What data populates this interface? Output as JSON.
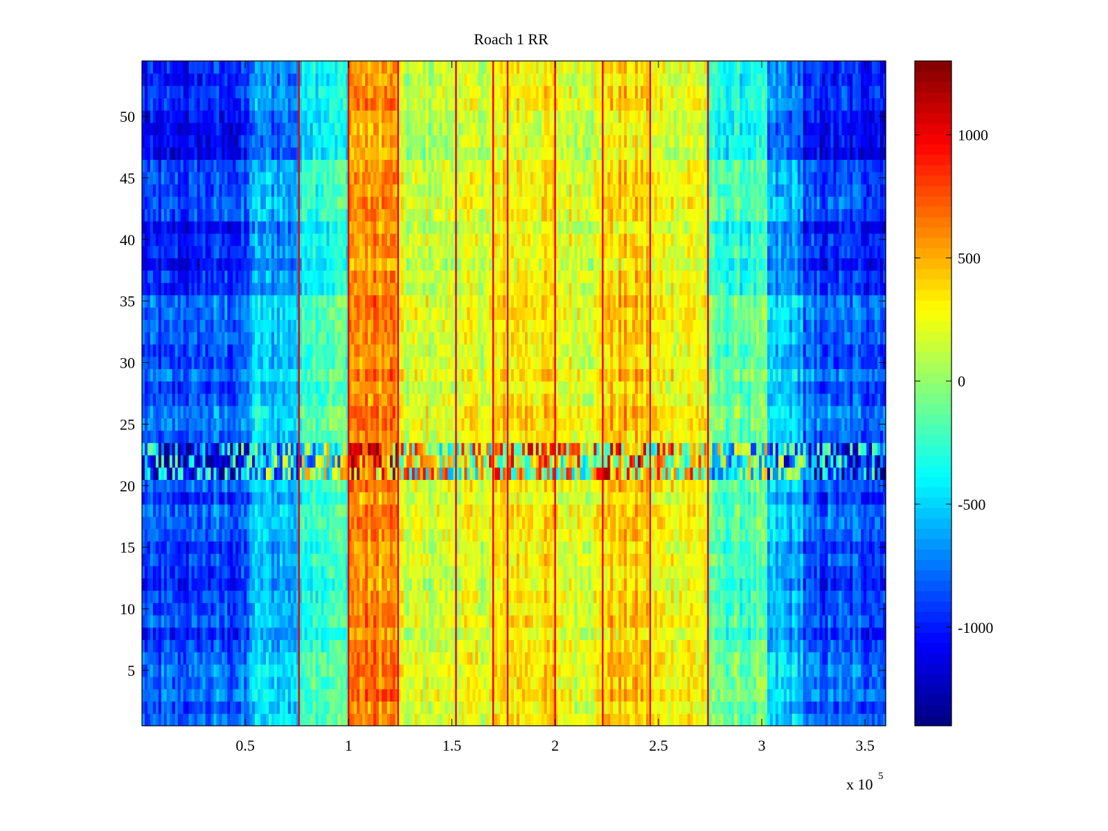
{
  "chart_data": {
    "type": "heatmap",
    "title": "Roach 1 RR",
    "xlabel": "",
    "ylabel": "",
    "x_exponent_label": "x 10",
    "x_exponent": "5",
    "xlim": [
      0,
      3.6
    ],
    "ylim": [
      0.5,
      54.5
    ],
    "x_ticks": [
      {
        "value": 0.5,
        "label": "0.5"
      },
      {
        "value": 1,
        "label": "1"
      },
      {
        "value": 1.5,
        "label": "1.5"
      },
      {
        "value": 2,
        "label": "2"
      },
      {
        "value": 2.5,
        "label": "2.5"
      },
      {
        "value": 3,
        "label": "3"
      },
      {
        "value": 3.5,
        "label": "3.5"
      }
    ],
    "y_ticks": [
      {
        "value": 5,
        "label": "5"
      },
      {
        "value": 10,
        "label": "10"
      },
      {
        "value": 15,
        "label": "15"
      },
      {
        "value": 20,
        "label": "20"
      },
      {
        "value": 25,
        "label": "25"
      },
      {
        "value": 30,
        "label": "30"
      },
      {
        "value": 35,
        "label": "35"
      },
      {
        "value": 40,
        "label": "40"
      },
      {
        "value": 45,
        "label": "45"
      },
      {
        "value": 50,
        "label": "50"
      }
    ],
    "rows": 54,
    "column_bands": [
      {
        "x_start": 0.0,
        "x_end": 0.27,
        "mean": -850
      },
      {
        "x_start": 0.27,
        "x_end": 0.52,
        "mean": -800
      },
      {
        "x_start": 0.52,
        "x_end": 0.77,
        "mean": -500
      },
      {
        "x_start": 0.77,
        "x_end": 1.0,
        "mean": -150
      },
      {
        "x_start": 1.0,
        "x_end": 1.24,
        "mean": 620
      },
      {
        "x_start": 1.24,
        "x_end": 1.52,
        "mean": 180
      },
      {
        "x_start": 1.52,
        "x_end": 1.7,
        "mean": 230
      },
      {
        "x_start": 1.7,
        "x_end": 1.77,
        "mean": 320
      },
      {
        "x_start": 1.77,
        "x_end": 2.0,
        "mean": 360
      },
      {
        "x_start": 2.0,
        "x_end": 2.23,
        "mean": 260
      },
      {
        "x_start": 2.23,
        "x_end": 2.46,
        "mean": 430
      },
      {
        "x_start": 2.46,
        "x_end": 2.74,
        "mean": 300
      },
      {
        "x_start": 2.74,
        "x_end": 3.03,
        "mean": -120
      },
      {
        "x_start": 3.03,
        "x_end": 3.2,
        "mean": -520
      },
      {
        "x_start": 3.2,
        "x_end": 3.6,
        "mean": -800
      }
    ],
    "vertical_lines_x": [
      0.76,
      1.0,
      1.24,
      1.52,
      1.7,
      1.77,
      2.0,
      2.23,
      2.46,
      2.74
    ],
    "row_effects": [
      {
        "y_start": 0.5,
        "y_end": 6.5,
        "delta": 0
      },
      {
        "y_start": 6.5,
        "y_end": 12.5,
        "delta": -120
      },
      {
        "y_start": 12.5,
        "y_end": 20.5,
        "delta": -60
      },
      {
        "y_start": 20.5,
        "y_end": 23.5,
        "delta": -250,
        "noise": 1600
      },
      {
        "y_start": 23.5,
        "y_end": 35.5,
        "delta": 0
      },
      {
        "y_start": 35.5,
        "y_end": 41.5,
        "delta": -200
      },
      {
        "y_start": 41.5,
        "y_end": 46.5,
        "delta": -60
      },
      {
        "y_start": 46.5,
        "y_end": 54.5,
        "delta": -220
      }
    ],
    "colorbar": {
      "colormap": "jet",
      "min": -1400,
      "max": 1300,
      "ticks": [
        {
          "value": 1000,
          "label": "1000"
        },
        {
          "value": 500,
          "label": "500"
        },
        {
          "value": 0,
          "label": "0"
        },
        {
          "value": -500,
          "label": "-500"
        },
        {
          "value": -1000,
          "label": "-1000"
        }
      ]
    },
    "grid": false
  }
}
